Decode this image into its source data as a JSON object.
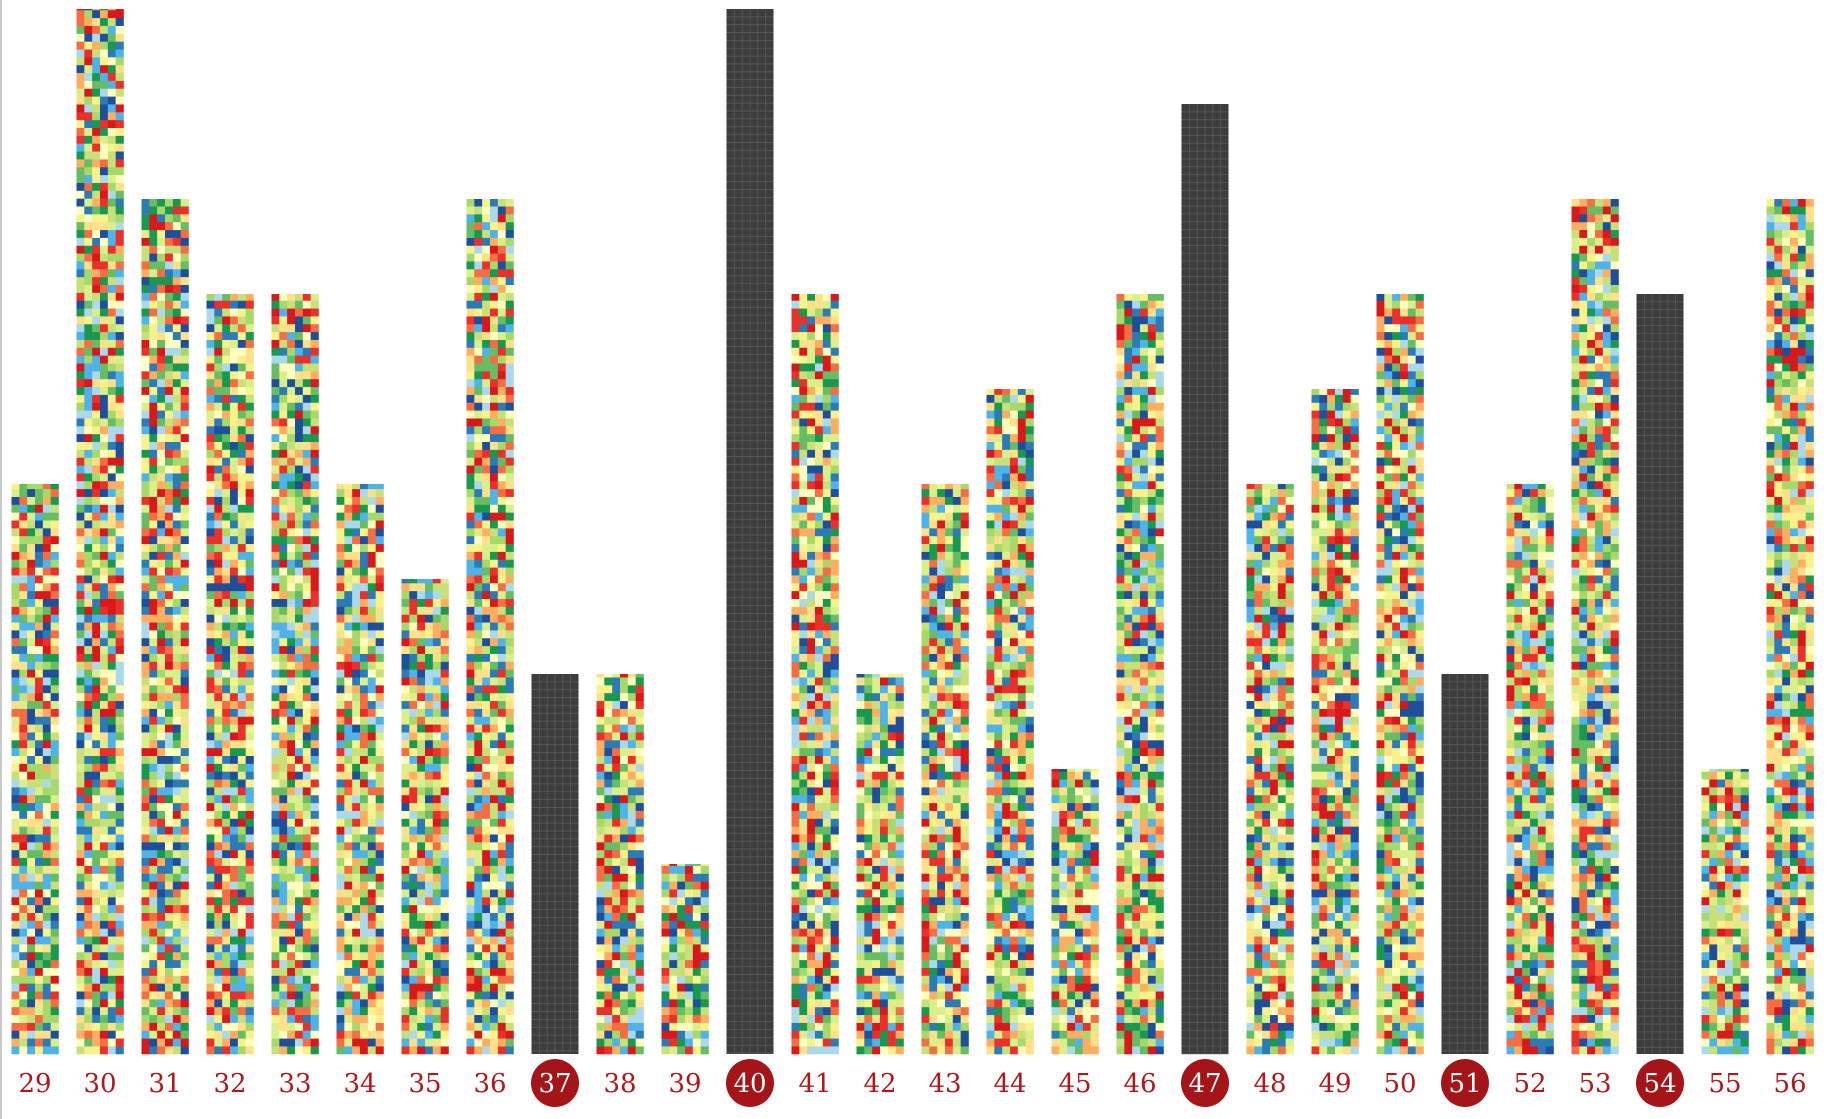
{
  "chart_data": {
    "type": "bar",
    "categories": [
      "29",
      "30",
      "31",
      "32",
      "33",
      "34",
      "35",
      "36",
      "37",
      "38",
      "39",
      "40",
      "41",
      "42",
      "43",
      "44",
      "45",
      "46",
      "47",
      "48",
      "49",
      "50",
      "51",
      "52",
      "53",
      "54",
      "55",
      "56"
    ],
    "values": [
      6,
      11,
      9,
      8,
      8,
      6,
      5,
      9,
      4,
      4,
      2,
      11,
      8,
      4,
      6,
      7,
      3,
      8,
      10,
      6,
      7,
      8,
      4,
      6,
      9,
      8,
      3,
      9
    ],
    "highlighted": [
      "37",
      "40",
      "47",
      "51",
      "54"
    ],
    "ylim": [
      0,
      11
    ],
    "grid": false,
    "title": "",
    "xlabel": "",
    "ylabel": ""
  },
  "colors": {
    "highlight_bar": "#3d3d3d",
    "highlight_grid_line": "#5a5a5a",
    "label_text": "#b0181c",
    "badge_fill": "#a51418",
    "badge_text": "#ffffff",
    "mosaic_palette": [
      "#d7191c",
      "#e8312a",
      "#fdae61",
      "#fee08b",
      "#ffffbf",
      "#d9ef8b",
      "#a6d96a",
      "#66bd63",
      "#1a9850",
      "#abd9e9",
      "#4fb3e8",
      "#2c7bb6",
      "#1f4e9a",
      "#f46d43",
      "#c7e07a",
      "#f7f28a"
    ]
  }
}
